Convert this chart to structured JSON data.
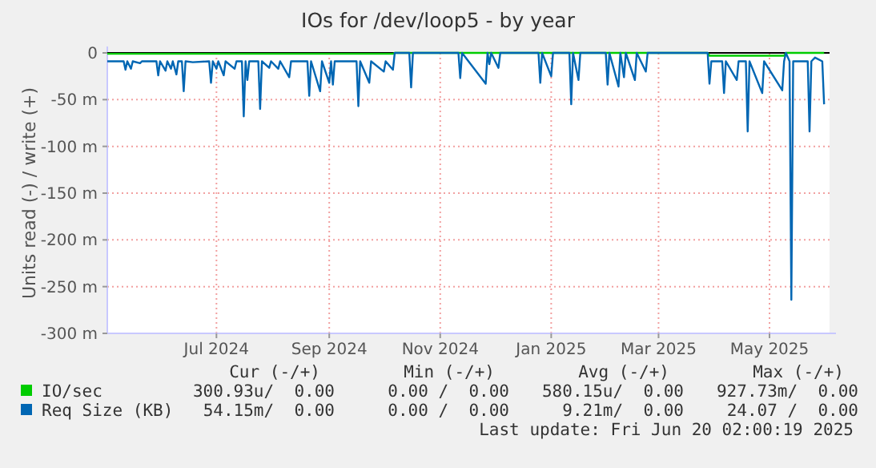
{
  "chart_data": {
    "type": "line",
    "title": "IOs for /dev/loop5 - by year",
    "ylabel": "Units read (-) / write (+)",
    "xlim": [
      "2024-05-02",
      "2025-06-03"
    ],
    "xticks": [
      {
        "value": "2024-07-01",
        "label": "Jul 2024"
      },
      {
        "value": "2024-09-01",
        "label": "Sep 2024"
      },
      {
        "value": "2024-11-01",
        "label": "Nov 2024"
      },
      {
        "value": "2025-01-01",
        "label": "Jan 2025"
      },
      {
        "value": "2025-03-01",
        "label": "Mar 2025"
      },
      {
        "value": "2025-05-01",
        "label": "May 2025"
      }
    ],
    "ylim": [
      -300,
      0
    ],
    "yticks": [
      0,
      {
        "value": -50,
        "label": "-50 m"
      },
      {
        "value": -100,
        "label": "-100 m"
      },
      {
        "value": -150,
        "label": "-150 m"
      },
      {
        "value": -200,
        "label": "-200 m"
      },
      {
        "value": -250,
        "label": "-250 m"
      },
      {
        "value": -300,
        "label": "-300 m"
      }
    ],
    "grid": true,
    "legend": "bottom left",
    "marker": "none",
    "line_style": "solid",
    "ref_lines": [
      {
        "axis": "y",
        "value": 0,
        "color": "#000000"
      }
    ],
    "series": [
      {
        "name": "IO/sec",
        "color": "#00cc00",
        "x": [
          "2024-05-02",
          "2024-10-06",
          "2024-10-07",
          "2025-03-28",
          "2025-03-29",
          "2025-05-09",
          "2025-05-10",
          "2025-05-31"
        ],
        "values": [
          -1,
          -1,
          0,
          0,
          -3,
          -3,
          0,
          0
        ]
      },
      {
        "name": "Req Size (KB)",
        "color": "#0066b3",
        "x": [
          "2024-05-02",
          "2024-05-11",
          "2024-05-12",
          "2024-05-13",
          "2024-05-15",
          "2024-05-16",
          "2024-05-20",
          "2024-05-21",
          "2024-05-29",
          "2024-05-30",
          "2024-05-31",
          "2024-06-03",
          "2024-06-04",
          "2024-06-06",
          "2024-06-07",
          "2024-06-09",
          "2024-06-10",
          "2024-06-12",
          "2024-06-13",
          "2024-06-14",
          "2024-06-18",
          "2024-06-27",
          "2024-06-28",
          "2024-06-29",
          "2024-07-01",
          "2024-07-02",
          "2024-07-05",
          "2024-07-06",
          "2024-07-11",
          "2024-07-12",
          "2024-07-15",
          "2024-07-16",
          "2024-07-17",
          "2024-07-18",
          "2024-07-19",
          "2024-07-24",
          "2024-07-25",
          "2024-07-26",
          "2024-07-30",
          "2024-07-31",
          "2024-08-04",
          "2024-08-05",
          "2024-08-10",
          "2024-08-11",
          "2024-08-20",
          "2024-08-21",
          "2024-08-22",
          "2024-08-27",
          "2024-08-28",
          "2024-09-01",
          "2024-09-02",
          "2024-09-03",
          "2024-09-04",
          "2024-09-16",
          "2024-09-17",
          "2024-09-18",
          "2024-09-23",
          "2024-09-24",
          "2024-10-01",
          "2024-10-02",
          "2024-10-06",
          "2024-10-07",
          "2024-10-15",
          "2024-10-16",
          "2024-10-17",
          "2024-11-11",
          "2024-11-12",
          "2024-11-13",
          "2024-11-26",
          "2024-11-27",
          "2024-11-28",
          "2024-11-29",
          "2024-12-03",
          "2024-12-04",
          "2024-12-25",
          "2024-12-26",
          "2024-12-27",
          "2025-01-01",
          "2025-01-02",
          "2025-01-11",
          "2025-01-12",
          "2025-01-13",
          "2025-01-16",
          "2025-01-17",
          "2025-01-31",
          "2025-02-01",
          "2025-02-02",
          "2025-02-07",
          "2025-02-08",
          "2025-02-10",
          "2025-02-11",
          "2025-02-16",
          "2025-02-17",
          "2025-02-22",
          "2025-02-23",
          "2025-03-28",
          "2025-03-29",
          "2025-03-30",
          "2025-04-05",
          "2025-04-06",
          "2025-04-07",
          "2025-04-13",
          "2025-04-14",
          "2025-04-18",
          "2025-04-19",
          "2025-04-20",
          "2025-04-27",
          "2025-04-28",
          "2025-05-08",
          "2025-05-09",
          "2025-05-10",
          "2025-05-12",
          "2025-05-13",
          "2025-05-14",
          "2025-05-16",
          "2025-05-22",
          "2025-05-23",
          "2025-05-24",
          "2025-05-26",
          "2025-05-30",
          "2025-05-31"
        ],
        "values": [
          -9,
          -9,
          -18,
          -9,
          -17,
          -9,
          -11,
          -9,
          -9,
          -24,
          -9,
          -19,
          -9,
          -17,
          -9,
          -23,
          -9,
          -9,
          -41,
          -9,
          -10,
          -9,
          -32,
          -9,
          -17,
          -9,
          -24,
          -9,
          -17,
          -9,
          -9,
          -68,
          -9,
          -29,
          -9,
          -9,
          -60,
          -9,
          -16,
          -9,
          -17,
          -9,
          -26,
          -9,
          -9,
          -46,
          -9,
          -41,
          -9,
          -32,
          -9,
          -34,
          -9,
          -9,
          -57,
          -9,
          -32,
          -9,
          -20,
          -9,
          -18,
          0,
          0,
          -37,
          0,
          0,
          -27,
          0,
          -33,
          0,
          -12,
          0,
          -16,
          0,
          0,
          -32,
          0,
          -25,
          0,
          0,
          -55,
          0,
          -29,
          0,
          0,
          -34,
          0,
          -36,
          0,
          -26,
          0,
          -29,
          0,
          -20,
          0,
          0,
          -33,
          -9,
          -9,
          -43,
          -9,
          -29,
          -9,
          -9,
          -84,
          -9,
          -43,
          -9,
          -40,
          -9,
          0,
          -9,
          -264,
          -9,
          -9,
          -9,
          -84,
          -9,
          -5,
          -9,
          -55
        ]
      }
    ],
    "annotations": [
      "Cur (-/+)",
      "Min (-/+)",
      "Avg (-/+)",
      "Max (-/+)",
      "300.93u/  0.00",
      "0.00 /  0.00",
      "580.15u/  0.00",
      "927.73m/  0.00",
      "54.15m/  0.00",
      "0.00 /  0.00",
      "9.21m/  0.00",
      "24.07 /  0.00",
      "Last update: Fri Jun 20 02:00:19 2025"
    ]
  }
}
